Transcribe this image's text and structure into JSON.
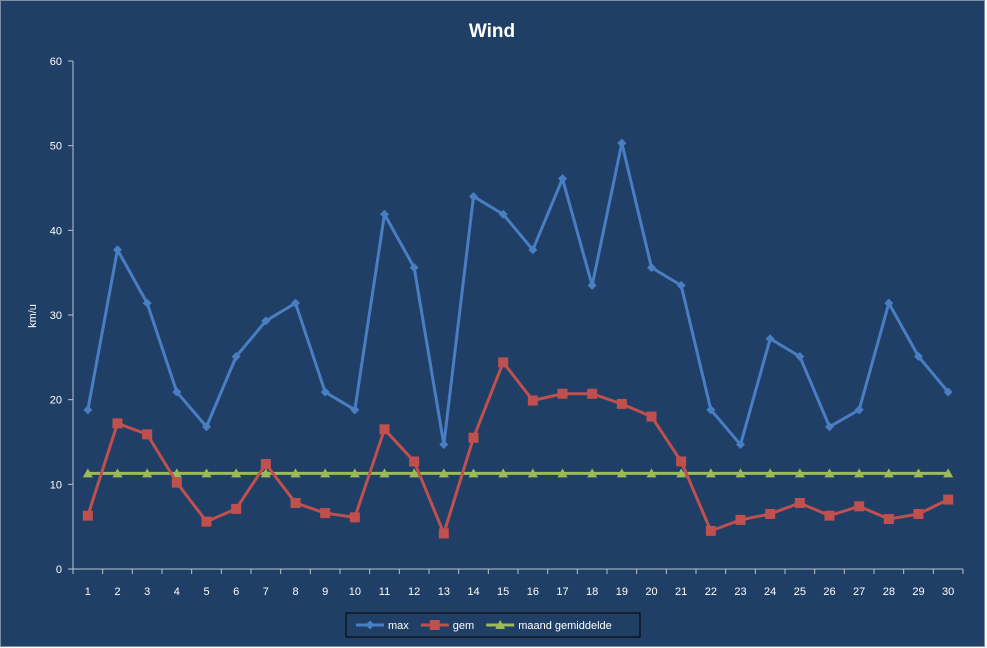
{
  "colors": {
    "background": "#1f3f66",
    "axis": "#b9c4d2",
    "max": "#4a7ec3",
    "gem": "#c0504d",
    "avg": "#9bbb59",
    "legend_bg": "#1f3f66"
  },
  "chart_data": {
    "type": "line",
    "title": "Wind",
    "xlabel": "",
    "ylabel": "km/u",
    "ylim": [
      0,
      60
    ],
    "yticks": [
      0,
      10,
      20,
      30,
      40,
      50,
      60
    ],
    "categories": [
      "1",
      "2",
      "3",
      "4",
      "5",
      "6",
      "7",
      "8",
      "9",
      "10",
      "11",
      "12",
      "13",
      "14",
      "15",
      "16",
      "17",
      "18",
      "19",
      "20",
      "21",
      "22",
      "23",
      "24",
      "25",
      "26",
      "27",
      "28",
      "29",
      "30"
    ],
    "legend_position": "bottom",
    "series": [
      {
        "name": "max",
        "marker": "diamond",
        "values": [
          18.8,
          37.7,
          31.4,
          20.9,
          16.8,
          25.1,
          29.3,
          31.4,
          20.9,
          18.8,
          41.9,
          35.6,
          14.7,
          44.0,
          41.9,
          37.7,
          46.1,
          33.5,
          50.3,
          35.6,
          33.5,
          18.8,
          14.7,
          27.2,
          25.1,
          16.8,
          18.8,
          31.4,
          25.1,
          20.9
        ]
      },
      {
        "name": "gem",
        "marker": "square",
        "values": [
          6.3,
          17.2,
          15.9,
          10.2,
          5.6,
          7.1,
          12.4,
          7.8,
          6.6,
          6.1,
          16.5,
          12.7,
          4.2,
          15.5,
          24.4,
          19.9,
          20.7,
          20.7,
          19.5,
          18.0,
          12.7,
          4.5,
          5.8,
          6.5,
          7.8,
          6.3,
          7.4,
          5.9,
          6.5,
          8.2
        ]
      },
      {
        "name": "maand gemiddelde",
        "marker": "triangle",
        "values": [
          11.3,
          11.3,
          11.3,
          11.3,
          11.3,
          11.3,
          11.3,
          11.3,
          11.3,
          11.3,
          11.3,
          11.3,
          11.3,
          11.3,
          11.3,
          11.3,
          11.3,
          11.3,
          11.3,
          11.3,
          11.3,
          11.3,
          11.3,
          11.3,
          11.3,
          11.3,
          11.3,
          11.3,
          11.3,
          11.3
        ]
      }
    ]
  }
}
